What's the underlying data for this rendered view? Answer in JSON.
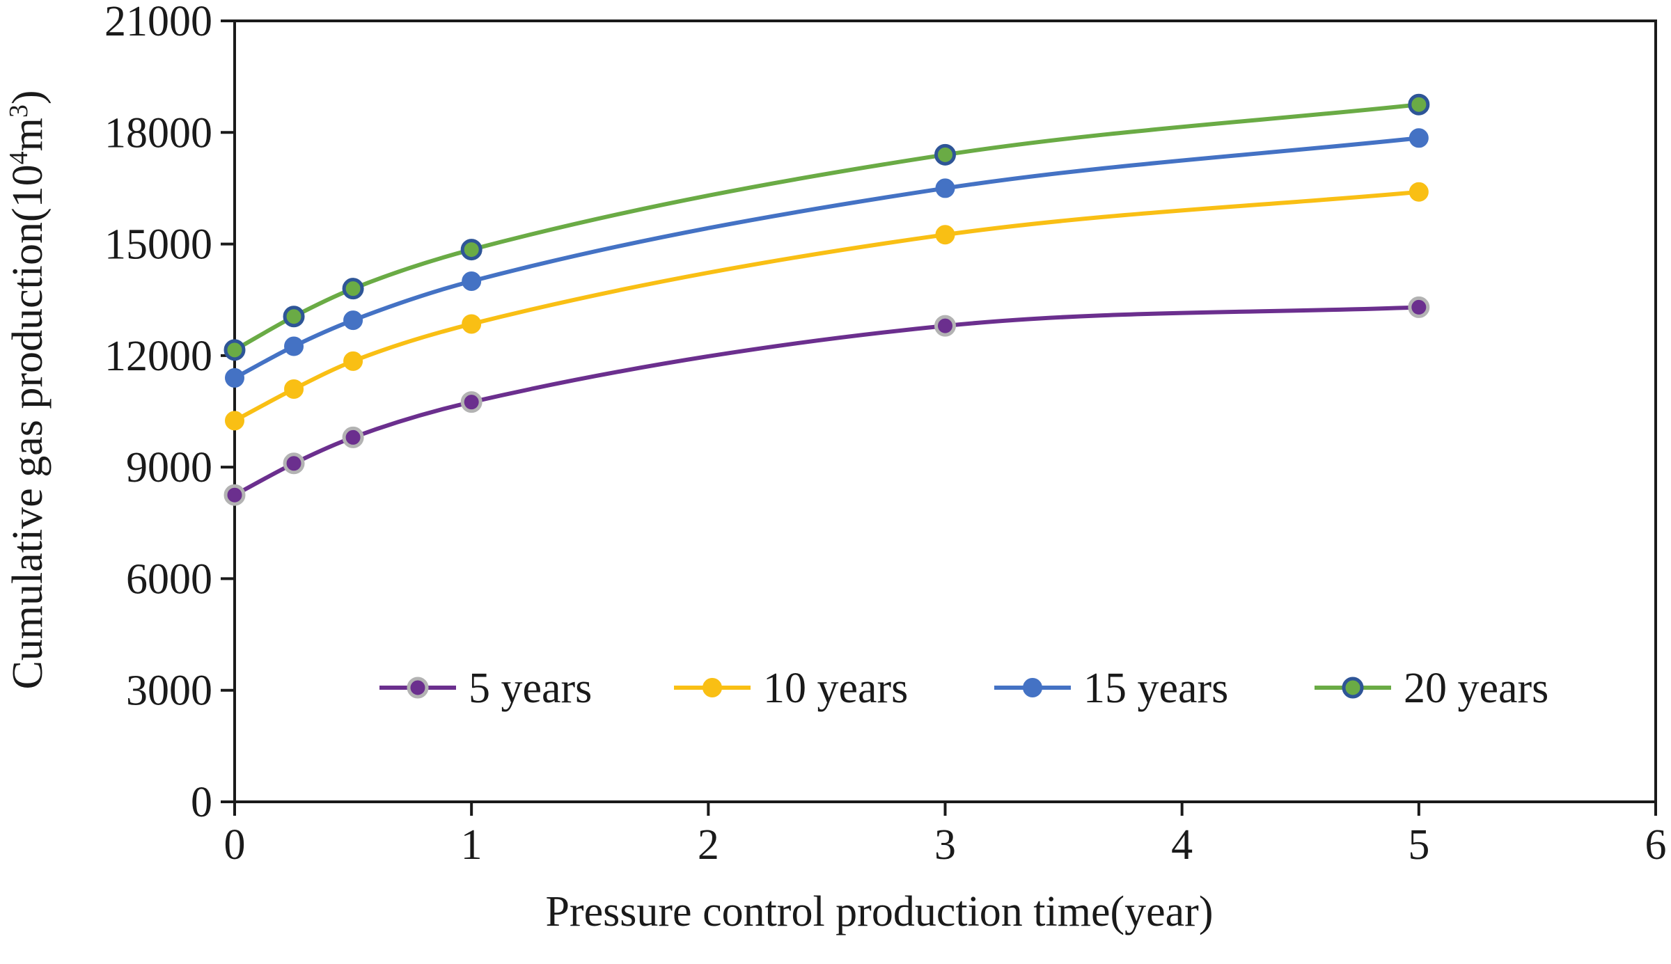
{
  "chart_data": {
    "type": "line",
    "title": "",
    "xlabel": "Pressure control production time(year)",
    "ylabel_main": "Cumulative gas production(10",
    "ylabel_sup1": "4",
    "ylabel_mid": "m",
    "ylabel_sup2": "3",
    "ylabel_end": ")",
    "xlim": [
      0,
      6
    ],
    "ylim": [
      0,
      21000
    ],
    "xticks": [
      0,
      1,
      2,
      3,
      4,
      5,
      6
    ],
    "yticks": [
      0,
      3000,
      6000,
      9000,
      12000,
      15000,
      18000,
      21000
    ],
    "x": [
      0,
      0.25,
      0.5,
      1,
      3,
      5
    ],
    "grid": false,
    "legend_position": "bottom-center",
    "series": [
      {
        "name": "5 years",
        "values": [
          8250,
          9100,
          9800,
          10750,
          12800,
          13300
        ],
        "line_color": "#6b2f8e",
        "marker_fill": "#6b2f8e",
        "marker_edge": "#b3b3b3"
      },
      {
        "name": "10 years",
        "values": [
          10250,
          11100,
          11850,
          12850,
          15250,
          16400
        ],
        "line_color": "#f9bf14",
        "marker_fill": "#f9bf14",
        "marker_edge": "#f9bf14"
      },
      {
        "name": "15 years",
        "values": [
          11400,
          12250,
          12950,
          14000,
          16500,
          17850
        ],
        "line_color": "#4472c4",
        "marker_fill": "#4472c4",
        "marker_edge": "#4472c4"
      },
      {
        "name": "20 years",
        "values": [
          12150,
          13050,
          13800,
          14850,
          17400,
          18750
        ],
        "line_color": "#6aab45",
        "marker_fill": "#6aab45",
        "marker_edge": "#2e5597"
      }
    ]
  }
}
